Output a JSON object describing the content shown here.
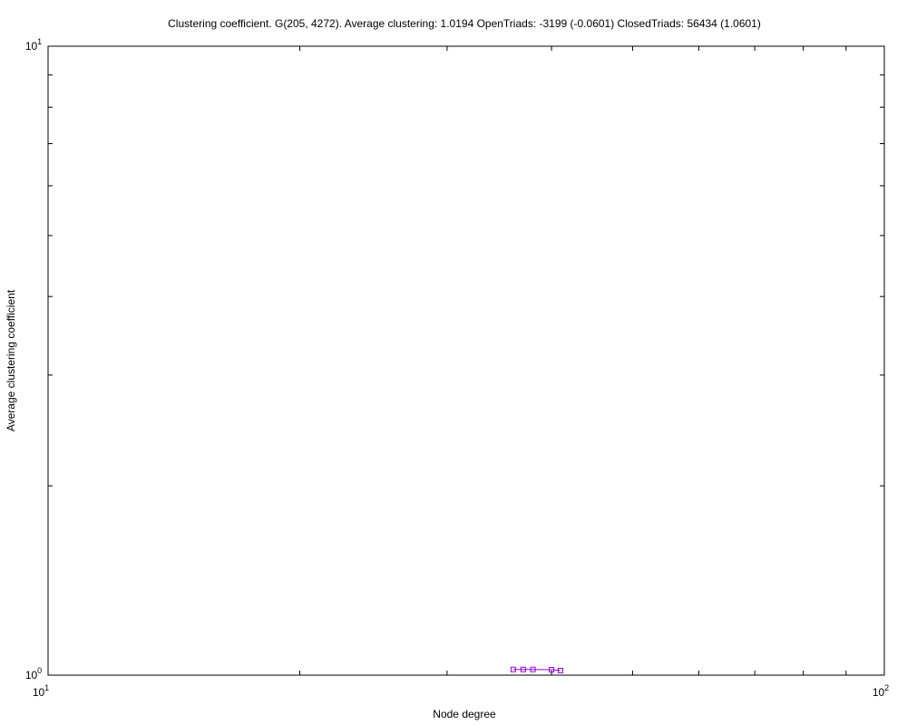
{
  "chart_data": {
    "type": "line",
    "title": "Clustering coefficient. G(205, 4272). Average clustering: 1.0194  OpenTriads: -3199 (-0.0601)  ClosedTriads: 56434 (1.0601)",
    "xlabel": "Node degree",
    "ylabel": "Average clustering coefficient",
    "xscale": "log",
    "yscale": "log",
    "xlim": [
      10,
      100
    ],
    "ylim": [
      1,
      10
    ],
    "x_ticks": [
      {
        "base": "10",
        "exp": "1"
      },
      {
        "base": "10",
        "exp": "2"
      }
    ],
    "y_ticks": [
      {
        "base": "10",
        "exp": "0"
      },
      {
        "base": "10",
        "exp": "1"
      }
    ],
    "grid": false,
    "series": [
      {
        "color": "#9400d3",
        "marker": "square",
        "x": [
          36,
          37,
          38,
          40,
          41
        ],
        "y": [
          1.021,
          1.021,
          1.021,
          1.02,
          1.017
        ]
      }
    ]
  }
}
